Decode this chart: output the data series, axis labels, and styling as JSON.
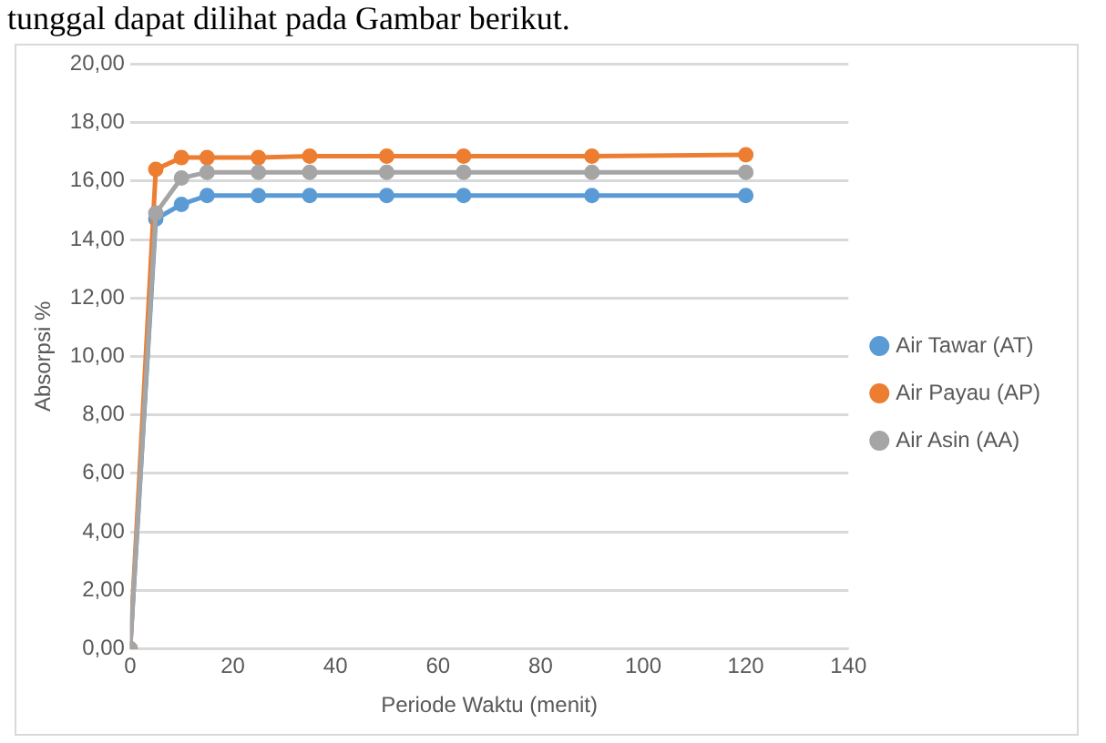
{
  "chart_data": {
    "type": "line",
    "annotations": [
      "tunggal dapat dilihat pada Gambar berikut."
    ],
    "xlabel": "Periode Waktu (menit)",
    "ylabel": "Absorpsi %",
    "x": [
      0,
      5,
      10,
      15,
      25,
      35,
      50,
      65,
      90,
      120
    ],
    "series": [
      {
        "name": "Air Tawar (AT)",
        "color": "#5b9bd5",
        "values": [
          0,
          14.7,
          15.2,
          15.5,
          15.5,
          15.5,
          15.5,
          15.5,
          15.5,
          15.5
        ]
      },
      {
        "name": "Air Payau (AP)",
        "color": "#ed7d31",
        "values": [
          0,
          16.4,
          16.8,
          16.8,
          16.8,
          16.85,
          16.85,
          16.85,
          16.85,
          16.9
        ]
      },
      {
        "name": "Air Asin (AA)",
        "color": "#a5a5a5",
        "values": [
          0,
          14.9,
          16.1,
          16.3,
          16.3,
          16.3,
          16.3,
          16.3,
          16.3,
          16.3
        ]
      }
    ],
    "xlim": [
      0,
      140
    ],
    "xticks": [
      0,
      20,
      40,
      60,
      80,
      100,
      120,
      140
    ],
    "ylim": [
      0,
      20
    ],
    "yticks": [
      {
        "value": 0,
        "label": "0,00"
      },
      {
        "value": 2,
        "label": "2,00"
      },
      {
        "value": 4,
        "label": "4,00"
      },
      {
        "value": 6,
        "label": "6,00"
      },
      {
        "value": 8,
        "label": "8,00"
      },
      {
        "value": 10,
        "label": "10,00"
      },
      {
        "value": 12,
        "label": "12,00"
      },
      {
        "value": 14,
        "label": "14,00"
      },
      {
        "value": 16,
        "label": "16,00"
      },
      {
        "value": 18,
        "label": "18,00"
      },
      {
        "value": 20,
        "label": "20,00"
      }
    ],
    "grid": "y",
    "legend": "right",
    "marker": "circle",
    "line_style": "solid"
  }
}
